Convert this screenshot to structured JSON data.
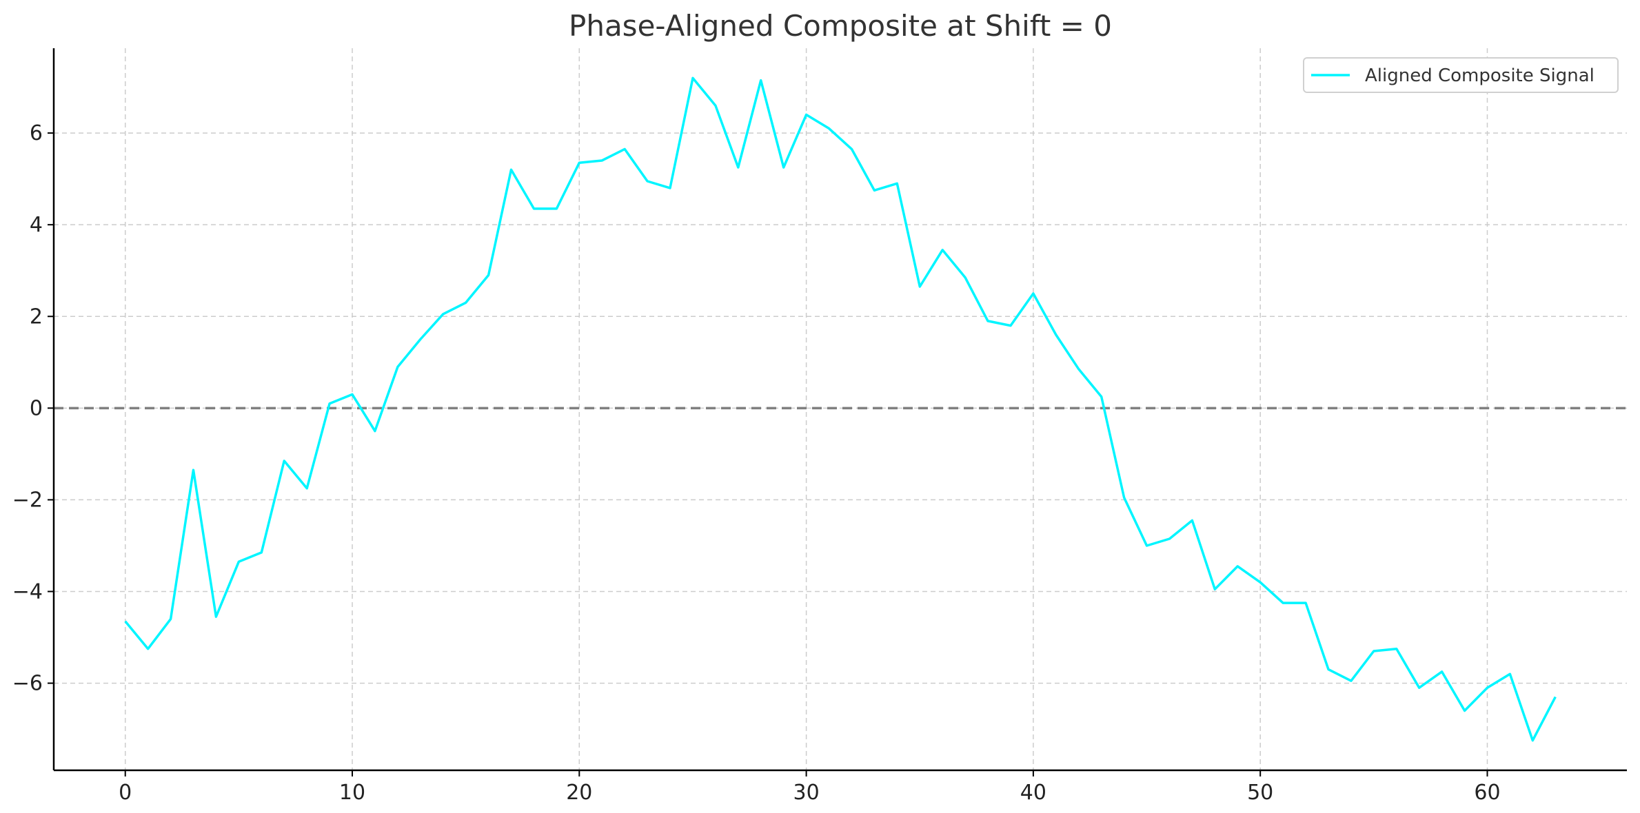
{
  "chart_data": {
    "type": "line",
    "title": "Phase-Aligned Composite at Shift = 0",
    "xlabel": "",
    "ylabel": "",
    "xlim": [
      -3.15,
      66.15
    ],
    "ylim": [
      -7.9,
      7.85
    ],
    "xticks": [
      0,
      10,
      20,
      30,
      40,
      50,
      60
    ],
    "yticks": [
      -6,
      -4,
      -2,
      0,
      2,
      4,
      6
    ],
    "grid": true,
    "legend_position": "top-right",
    "reference_line": {
      "y": 0,
      "style": "dashed",
      "color": "#808080"
    },
    "series": [
      {
        "name": "Aligned Composite Signal",
        "color": "#00f5ff",
        "x": [
          0,
          1,
          2,
          3,
          4,
          5,
          6,
          7,
          8,
          9,
          10,
          11,
          12,
          13,
          14,
          15,
          16,
          17,
          18,
          19,
          20,
          21,
          22,
          23,
          24,
          25,
          26,
          27,
          28,
          29,
          30,
          31,
          32,
          33,
          34,
          35,
          36,
          37,
          38,
          39,
          40,
          41,
          42,
          43,
          44,
          45,
          46,
          47,
          48,
          49,
          50,
          51,
          52,
          53,
          54,
          55,
          56,
          57,
          58,
          59,
          60,
          61,
          62,
          63
        ],
        "values": [
          -4.65,
          -5.25,
          -4.6,
          -1.35,
          -4.55,
          -3.35,
          -3.15,
          -1.15,
          -1.75,
          0.1,
          0.3,
          -0.5,
          0.9,
          1.5,
          2.05,
          2.3,
          2.9,
          5.2,
          4.35,
          4.35,
          5.35,
          5.4,
          5.65,
          4.95,
          4.8,
          7.2,
          6.6,
          5.25,
          7.15,
          5.25,
          6.4,
          6.1,
          5.65,
          4.75,
          4.9,
          2.65,
          3.45,
          2.85,
          1.9,
          1.8,
          2.5,
          1.6,
          0.85,
          0.25,
          -1.95,
          -3.0,
          -2.85,
          -2.45,
          -3.95,
          -3.45,
          -3.8,
          -4.25,
          -4.25,
          -5.7,
          -5.95,
          -5.3,
          -5.25,
          -6.1,
          -5.75,
          -6.6,
          -6.1,
          -5.8,
          -7.25,
          -6.3
        ]
      }
    ]
  }
}
